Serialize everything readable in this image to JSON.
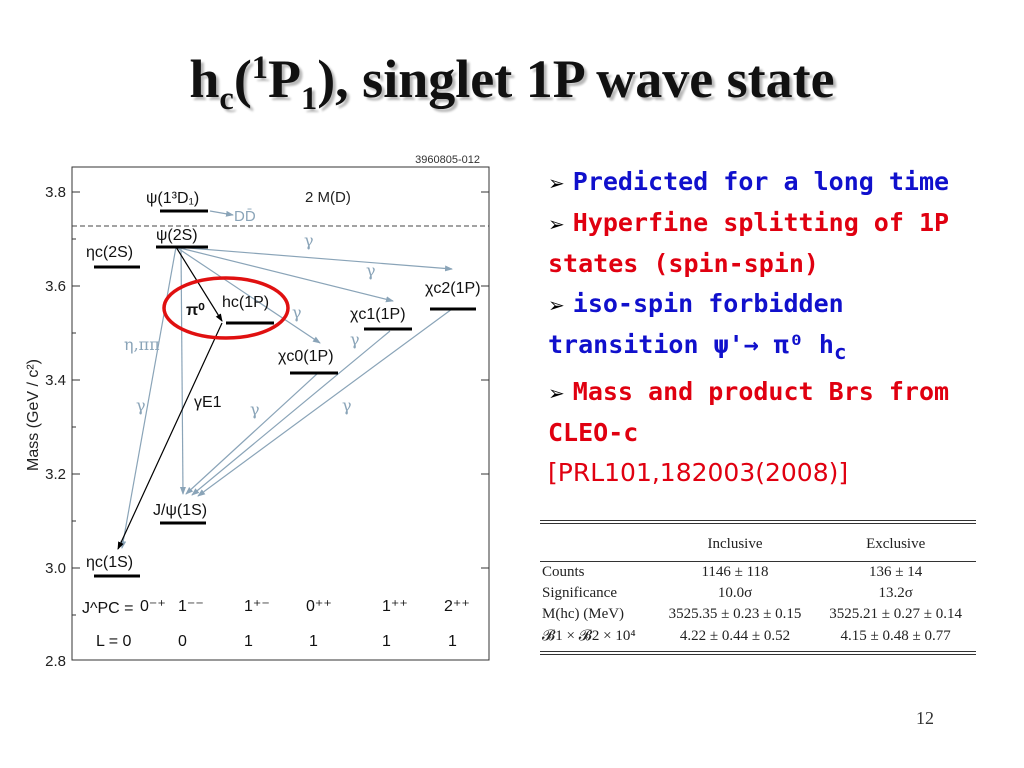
{
  "slide": {
    "title_main": "h",
    "title_sub_c": "c",
    "title_paren_open": "(",
    "title_sup": "1",
    "title_p": "P",
    "title_sub_1": "1",
    "title_rest": "), singlet 1P wave state",
    "page_number": "12"
  },
  "diagram": {
    "id_label": "3960805-012",
    "y_axis_label": "Mass (GeV / c²)",
    "y_ticks": [
      "3.8",
      "3.6",
      "3.4",
      "3.2",
      "3.0",
      "2.8"
    ],
    "dd_threshold_label": "2 M(D)",
    "dd_label": "DD̄",
    "states": {
      "psi_13D1": "ψ(1³D₁)",
      "psi_2S": "ψ(2S)",
      "eta_c_2S": "ηc(2S)",
      "hc_1P": "hc(1P)",
      "pi0": "π⁰",
      "chi_c2": "χc2(1P)",
      "chi_c1": "χc1(1P)",
      "chi_c0": "χc0(1P)",
      "jpsi_1S": "J/ψ(1S)",
      "eta_c_1S": "ηc(1S)"
    },
    "transition_labels": {
      "gamma": "γ",
      "eta_pipi": "η,ππ",
      "gamma_e1": "γE1"
    },
    "jpc_row_label": "J^PC = ",
    "jpc_values": [
      "0⁻⁺",
      "1⁻⁻",
      "1⁺⁻",
      "0⁺⁺",
      "1⁺⁺",
      "2⁺⁺"
    ],
    "l_row_label": "L = 0",
    "l_values": [
      "0",
      "1",
      "1",
      "1",
      "1"
    ]
  },
  "bullets": [
    {
      "marker": "➢",
      "text": "Predicted for a long time",
      "color": "#1010cc"
    },
    {
      "marker": "➢",
      "text": "Hyperfine splitting of 1P states (spin-spin)",
      "color": "#e00010"
    },
    {
      "marker": "➢",
      "text_prefix": "iso-spin forbidden transition ",
      "decay": "ψ'→ π⁰ h",
      "decay_sub": "c",
      "color": "#1010cc"
    },
    {
      "marker": "➢",
      "text": "Mass and product Brs from CLEO-c",
      "ref": "[PRL101,182003(2008)]",
      "color": "#e00010"
    }
  ],
  "table": {
    "headers": [
      "",
      "Inclusive",
      "Exclusive"
    ],
    "rows": [
      [
        "Counts",
        "1146 ± 118",
        "136 ± 14"
      ],
      [
        "Significance",
        "10.0σ",
        "13.2σ"
      ],
      [
        "M(hc) (MeV)",
        "3525.35 ± 0.23 ± 0.15",
        "3525.21 ± 0.27 ± 0.14"
      ],
      [
        "𝓑1 × 𝓑2 × 10⁴",
        "4.22 ± 0.44 ± 0.52",
        "4.15 ± 0.48 ± 0.77"
      ]
    ]
  }
}
